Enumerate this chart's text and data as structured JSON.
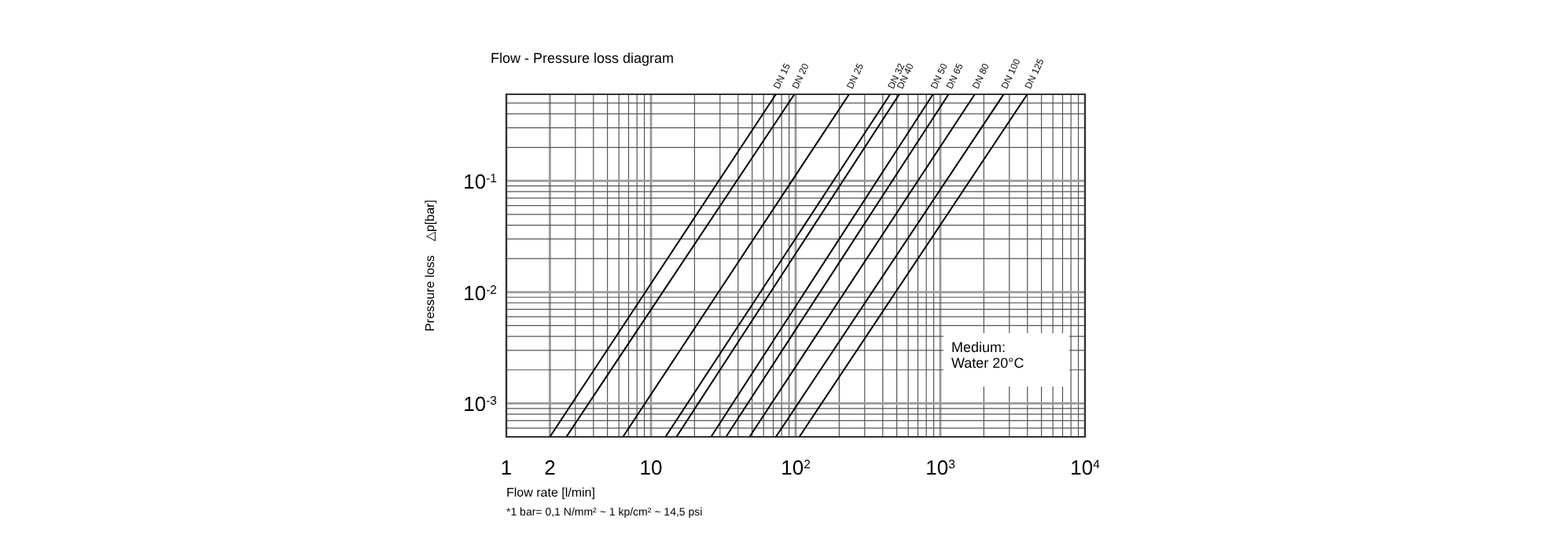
{
  "chart_data": {
    "type": "line",
    "title": "Flow - Pressure loss diagram",
    "xlabel": "Flow rate [l/min]",
    "ylabel": "Pressure loss    △p[bar]",
    "log": "xy",
    "grid": true,
    "marker": "none",
    "line_style": "solid",
    "xlim": [
      1,
      10000
    ],
    "ylim": [
      0.0005,
      0.6
    ],
    "xticks": [
      1,
      2,
      {
        "value": 3,
        "label": null
      },
      {
        "value": 4,
        "label": null
      },
      {
        "value": 5,
        "label": null
      },
      {
        "value": 6,
        "label": null
      },
      {
        "value": 7,
        "label": null
      },
      {
        "value": 8,
        "label": null
      },
      {
        "value": 9,
        "label": null
      },
      10,
      {
        "value": 20,
        "label": null
      },
      {
        "value": 30,
        "label": null
      },
      {
        "value": 40,
        "label": null
      },
      {
        "value": 50,
        "label": null
      },
      {
        "value": 60,
        "label": null
      },
      {
        "value": 70,
        "label": null
      },
      {
        "value": 80,
        "label": null
      },
      {
        "value": 90,
        "label": null
      },
      {
        "value": 100,
        "label": "10$^{2}$"
      },
      {
        "value": 200,
        "label": null
      },
      {
        "value": 300,
        "label": null
      },
      {
        "value": 400,
        "label": null
      },
      {
        "value": 500,
        "label": null
      },
      {
        "value": 600,
        "label": null
      },
      {
        "value": 700,
        "label": null
      },
      {
        "value": 800,
        "label": null
      },
      {
        "value": 900,
        "label": null
      },
      {
        "value": 1000,
        "label": "10$^{3}$"
      },
      {
        "value": 2000,
        "label": null
      },
      {
        "value": 3000,
        "label": null
      },
      {
        "value": 4000,
        "label": null
      },
      {
        "value": 5000,
        "label": null
      },
      {
        "value": 6000,
        "label": null
      },
      {
        "value": 7000,
        "label": null
      },
      {
        "value": 8000,
        "label": null
      },
      {
        "value": 9000,
        "label": null
      },
      {
        "value": 10000,
        "label": "10$^{4}$"
      }
    ],
    "yticks": [
      {
        "value": 0.0005,
        "label": null
      },
      {
        "value": 0.0006,
        "label": null
      },
      {
        "value": 0.0007,
        "label": null
      },
      {
        "value": 0.0008,
        "label": null
      },
      {
        "value": 0.0009,
        "label": null
      },
      {
        "value": 0.001,
        "label": "10$^{-3}$"
      },
      {
        "value": 0.002,
        "label": null
      },
      {
        "value": 0.003,
        "label": null
      },
      {
        "value": 0.004,
        "label": null
      },
      {
        "value": 0.005,
        "label": null
      },
      {
        "value": 0.006,
        "label": null
      },
      {
        "value": 0.007,
        "label": null
      },
      {
        "value": 0.008,
        "label": null
      },
      {
        "value": 0.009,
        "label": null
      },
      {
        "value": 0.01,
        "label": "10$^{-2}$"
      },
      {
        "value": 0.02,
        "label": null
      },
      {
        "value": 0.03,
        "label": null
      },
      {
        "value": 0.04,
        "label": null
      },
      {
        "value": 0.05,
        "label": null
      },
      {
        "value": 0.06,
        "label": null
      },
      {
        "value": 0.07,
        "label": null
      },
      {
        "value": 0.08,
        "label": null
      },
      {
        "value": 0.09,
        "label": null
      },
      {
        "value": 0.1,
        "label": "10$^{-1}$"
      },
      {
        "value": 0.2,
        "label": null
      },
      {
        "value": 0.3,
        "label": null
      },
      {
        "value": 0.4,
        "label": null
      },
      {
        "value": 0.5,
        "label": null
      },
      {
        "value": 0.6,
        "label": null
      }
    ],
    "series": [
      {
        "name": "DN 15",
        "color": "#000000",
        "x": [
          2,
          73
        ],
        "values": [
          0.0005,
          0.6
        ]
      },
      {
        "name": "DN 20",
        "color": "#000000",
        "x": [
          2.6,
          98
        ],
        "values": [
          0.0005,
          0.6
        ]
      },
      {
        "name": "DN 25",
        "color": "#000000",
        "x": [
          6.4,
          234
        ],
        "values": [
          0.0005,
          0.6
        ]
      },
      {
        "name": "DN 32",
        "color": "#000000",
        "x": [
          12.6,
          450
        ],
        "values": [
          0.0005,
          0.6
        ]
      },
      {
        "name": "DN 40",
        "color": "#000000",
        "x": [
          15,
          520
        ],
        "values": [
          0.0005,
          0.6
        ]
      },
      {
        "name": "DN 50",
        "color": "#000000",
        "x": [
          26,
          890
        ],
        "values": [
          0.0005,
          0.6
        ]
      },
      {
        "name": "DN 65",
        "color": "#000000",
        "x": [
          33,
          1140
        ],
        "values": [
          0.0005,
          0.6
        ]
      },
      {
        "name": "DN 80",
        "color": "#000000",
        "x": [
          48,
          1730
        ],
        "values": [
          0.0005,
          0.6
        ]
      },
      {
        "name": "DN 100",
        "color": "#000000",
        "x": [
          73,
          2740
        ],
        "values": [
          0.0005,
          0.6
        ]
      },
      {
        "name": "DN 125",
        "color": "#000000",
        "x": [
          106,
          3990
        ],
        "values": [
          0.0005,
          0.6
        ]
      }
    ],
    "annotations": [
      "Medium:\nWater 20°C",
      "*1 bar= 0,1 N/mm² ~ 1 kp/cm² ~ 14,5 psi"
    ]
  }
}
